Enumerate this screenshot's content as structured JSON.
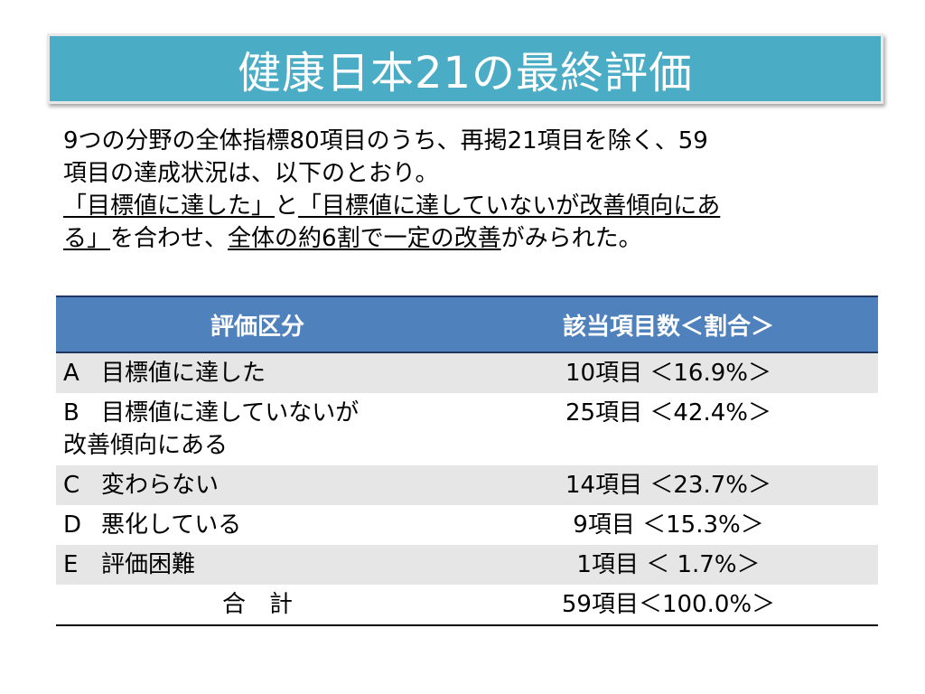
{
  "title": "健康日本21の最終評価",
  "intro": {
    "line1": "9つの分野の全体指標80項目のうち、再掲21項目を除く、59",
    "line2": "項目の達成状況は、以下のとおり。",
    "line3_u": "「目標値に達した」",
    "line3_a": "と",
    "line3_u2": "「目標値に達していないが改善傾向にあ",
    "line4_u": "る」",
    "line4_a": "を合わせ、",
    "line4_u2": "全体の約6割で一定の改善",
    "line4_b": "がみられた。"
  },
  "table": {
    "headers": [
      "評価区分",
      "該当項目数＜割合＞"
    ],
    "rows": [
      {
        "letter": "A",
        "label": "目標値に達した",
        "label2": "",
        "value": "10項目 ＜16.9%＞"
      },
      {
        "letter": "B",
        "label": "目標値に達していないが",
        "label2": "改善傾向にある",
        "value": "25項目 ＜42.4%＞"
      },
      {
        "letter": "C",
        "label": "変わらない",
        "label2": "",
        "value": "14項目 ＜23.7%＞"
      },
      {
        "letter": "D",
        "label": "悪化している",
        "label2": "",
        "value": "9項目 ＜15.3%＞"
      },
      {
        "letter": "E",
        "label": "評価困難",
        "label2": "",
        "value": "1項目 ＜ 1.7%＞"
      }
    ],
    "total": {
      "label": "合　計",
      "value": "59項目＜100.0%＞"
    }
  },
  "colors": {
    "title_bg": "#4bacc6",
    "header_bg": "#4f81bd",
    "row_shade": "#e6e6e6"
  }
}
